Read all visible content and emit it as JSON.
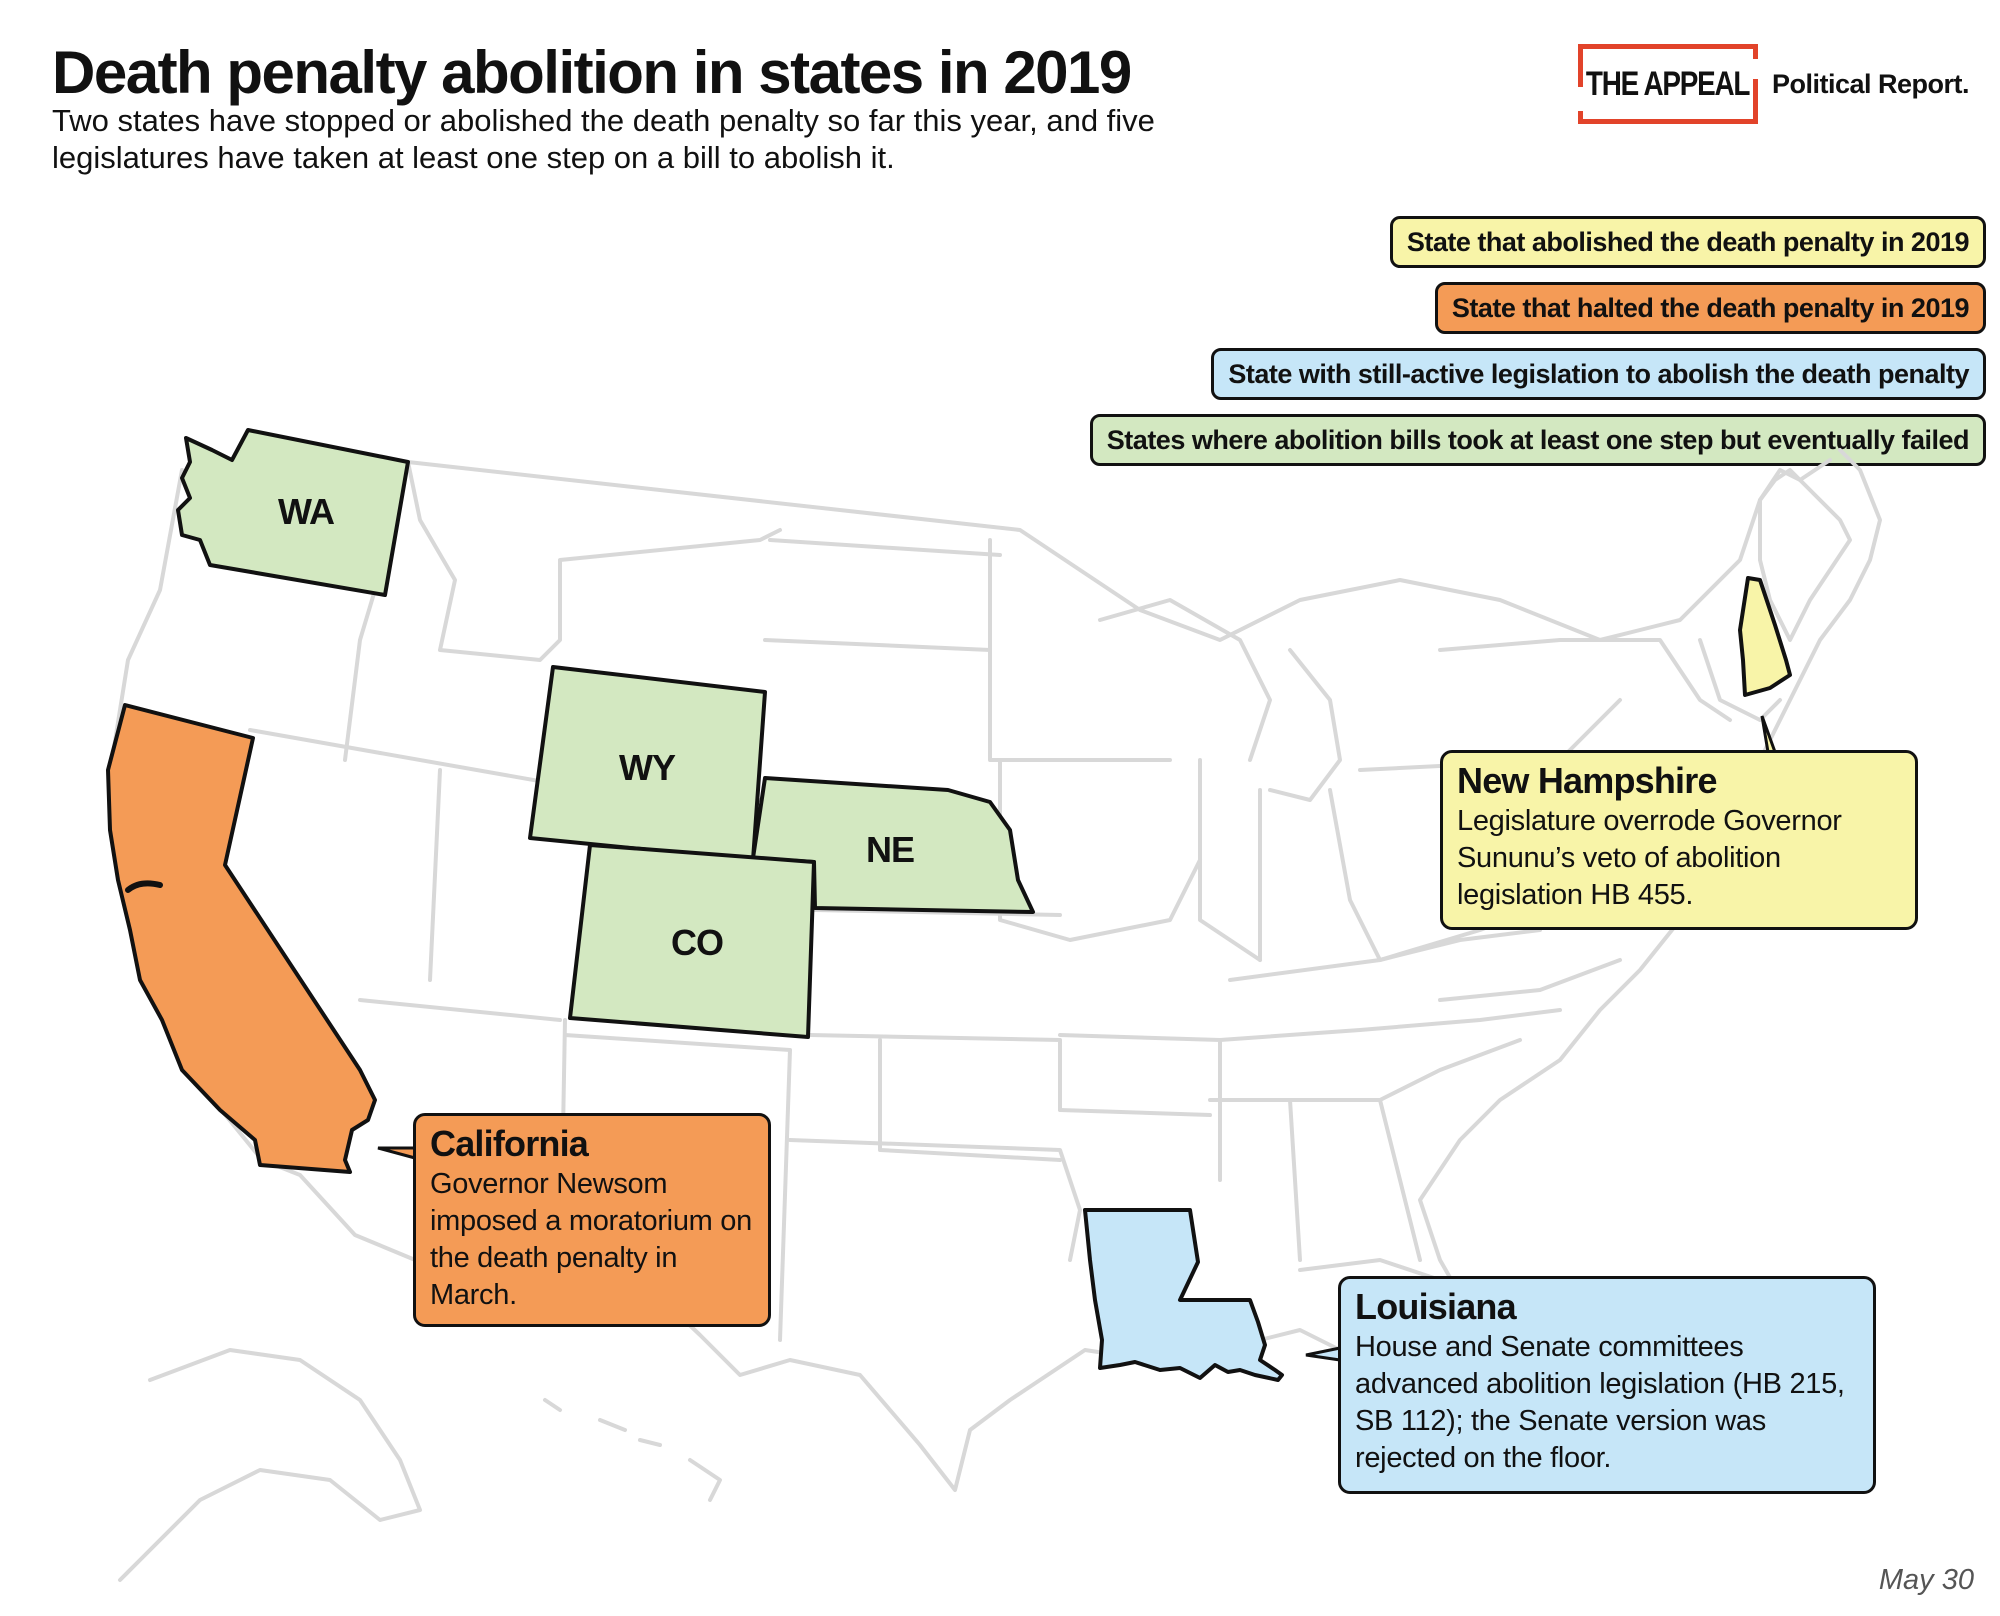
{
  "header": {
    "title": "Death penalty abolition in states in 2019",
    "subtitle": "Two states have stopped or abolished the death penalty so far this year, and five legislatures have taken at least one step on a bill to abolish it."
  },
  "brand": {
    "name": "THE APPEAL",
    "tagline": "Political Report."
  },
  "colors": {
    "abolished": "#f8f4a8",
    "halted": "#f49b56",
    "active": "#c6e6f8",
    "failed": "#d3e8c1",
    "base_state_border": "#d8d8d8",
    "brand_red": "#e2432a"
  },
  "legend": [
    {
      "label": "State that abolished the death penalty in 2019",
      "category": "abolished"
    },
    {
      "label": "State that halted the death penalty in 2019",
      "category": "halted"
    },
    {
      "label": "State with still-active legislation to abolish the death penalty",
      "category": "active"
    },
    {
      "label": "States where abolition bills took at least one step but eventually failed",
      "category": "failed"
    }
  ],
  "states": [
    {
      "abbr": "WA",
      "category": "failed"
    },
    {
      "abbr": "WY",
      "category": "failed"
    },
    {
      "abbr": "NE",
      "category": "failed"
    },
    {
      "abbr": "CO",
      "category": "failed"
    },
    {
      "abbr": "CA",
      "category": "halted"
    },
    {
      "abbr": "LA",
      "category": "active"
    },
    {
      "abbr": "NH",
      "category": "abolished"
    }
  ],
  "callouts": {
    "california": {
      "title": "California",
      "body": "Governor Newsom imposed a moratorium on the death penalty in March."
    },
    "new_hampshire": {
      "title": "New Hampshire",
      "body": "Legislature overrode Governor Sununu’s veto of abolition legislation HB 455."
    },
    "louisiana": {
      "title": "Louisiana",
      "body": "House and Senate committees advanced abolition legislation (HB 215, SB 112); the Senate version was rejected on the floor."
    }
  },
  "footer": {
    "date": "May 30"
  }
}
